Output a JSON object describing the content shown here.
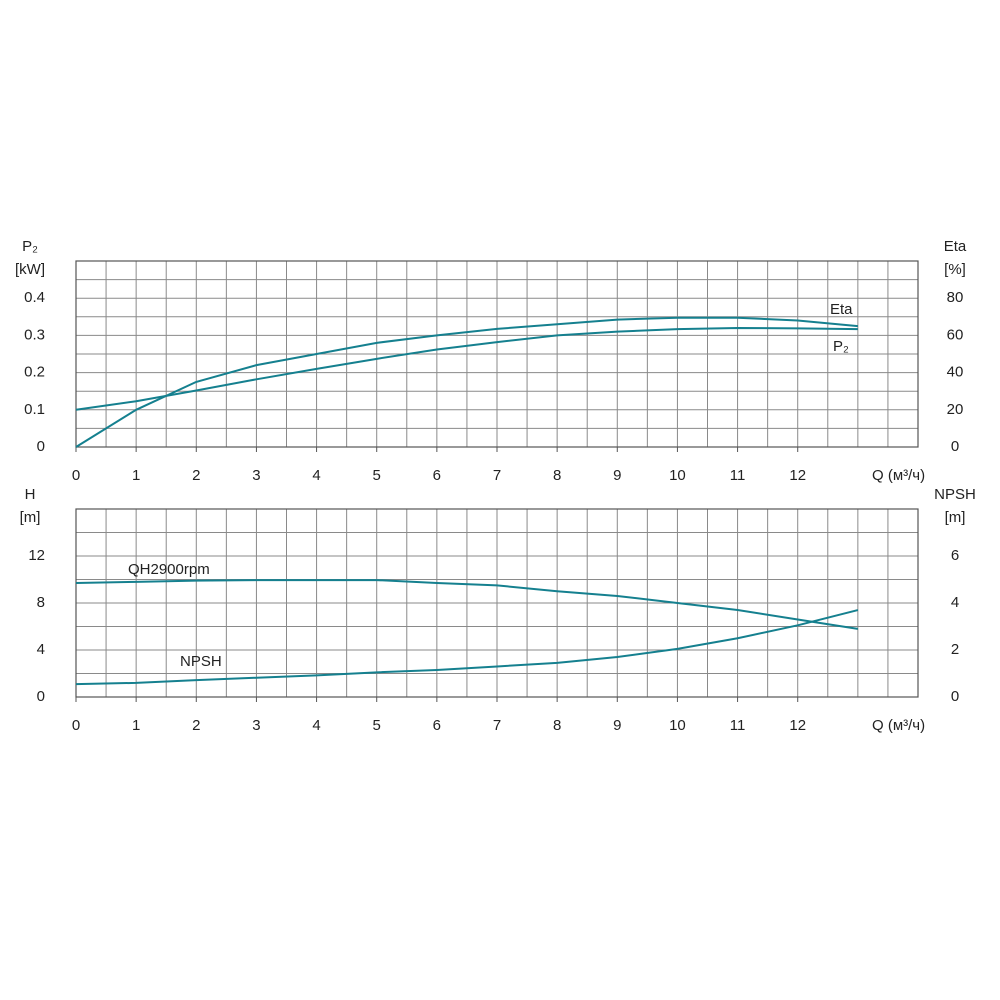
{
  "chart_data": [
    {
      "type": "line",
      "ylabel": "P₂",
      "yunit": "[kW]",
      "y2label": "Eta",
      "y2unit": "[%]",
      "xlabel": "Q (м³/ч)",
      "x": [
        0,
        1,
        2,
        3,
        4,
        5,
        6,
        7,
        8,
        9,
        10,
        11,
        12,
        13
      ],
      "xlim": [
        0,
        14
      ],
      "xticks": [
        0,
        1,
        2,
        3,
        4,
        5,
        6,
        7,
        8,
        9,
        10,
        11,
        12
      ],
      "xgrid": [
        0,
        0.5,
        1,
        1.5,
        2,
        2.5,
        3,
        3.5,
        4,
        4.5,
        5,
        5.5,
        6,
        6.5,
        7,
        7.5,
        8,
        8.5,
        9,
        9.5,
        10,
        10.5,
        11,
        11.5,
        12,
        12.5,
        13,
        13.5,
        14
      ],
      "ylim": [
        0,
        0.5
      ],
      "yticks": [
        0,
        0.1,
        0.2,
        0.3,
        0.4
      ],
      "ygrid": [
        0,
        0.05,
        0.1,
        0.15,
        0.2,
        0.25,
        0.3,
        0.35,
        0.4,
        0.45,
        0.5
      ],
      "y2lim": [
        0,
        100
      ],
      "y2ticks": [
        0,
        20,
        40,
        60,
        80
      ],
      "series": [
        {
          "name": "Eta",
          "color": "#15808f",
          "axis": "y2",
          "values": [
            0,
            20,
            35,
            44,
            50,
            56,
            60,
            63.5,
            66,
            68.5,
            69.5,
            69.5,
            68,
            65
          ]
        },
        {
          "name": "P₂",
          "color": "#15808f",
          "axis": "y",
          "values": [
            0.1,
            0.123,
            0.152,
            0.182,
            0.21,
            0.237,
            0.262,
            0.282,
            0.3,
            0.31,
            0.317,
            0.32,
            0.319,
            0.317
          ]
        }
      ]
    },
    {
      "type": "line",
      "ylabel": "H",
      "yunit": "[m]",
      "y2label": "NPSH",
      "y2unit": "[m]",
      "xlabel": "Q (м³/ч)",
      "x": [
        0,
        1,
        2,
        3,
        4,
        5,
        6,
        7,
        8,
        9,
        10,
        11,
        12,
        13
      ],
      "xlim": [
        0,
        14
      ],
      "xticks": [
        0,
        1,
        2,
        3,
        4,
        5,
        6,
        7,
        8,
        9,
        10,
        11,
        12
      ],
      "xgrid": [
        0,
        0.5,
        1,
        1.5,
        2,
        2.5,
        3,
        3.5,
        4,
        4.5,
        5,
        5.5,
        6,
        6.5,
        7,
        7.5,
        8,
        8.5,
        9,
        9.5,
        10,
        10.5,
        11,
        11.5,
        12,
        12.5,
        13,
        13.5,
        14
      ],
      "ylim": [
        0,
        16
      ],
      "yticks": [
        0,
        4,
        8,
        12
      ],
      "ygrid": [
        0,
        2,
        4,
        6,
        8,
        10,
        12,
        14,
        16
      ],
      "y2lim": [
        0,
        8
      ],
      "y2ticks": [
        0,
        2,
        4,
        6
      ],
      "series": [
        {
          "name": "QH2900rpm",
          "color": "#15808f",
          "axis": "y",
          "values": [
            9.7,
            9.8,
            9.9,
            9.95,
            9.95,
            9.95,
            9.7,
            9.5,
            9.0,
            8.6,
            8.0,
            7.4,
            6.6,
            5.8
          ]
        },
        {
          "name": "NPSH",
          "color": "#15808f",
          "axis": "y2",
          "values": [
            0.55,
            0.6,
            0.72,
            0.82,
            0.92,
            1.05,
            1.15,
            1.3,
            1.45,
            1.7,
            2.05,
            2.5,
            3.05,
            3.7
          ]
        }
      ]
    }
  ]
}
